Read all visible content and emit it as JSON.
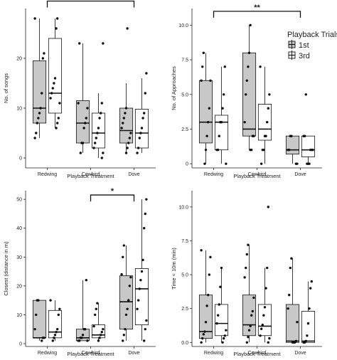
{
  "figure_title": "",
  "colors": {
    "first_fill": "#c8c8c8",
    "third_fill": "#ffffff",
    "stroke": "#111111",
    "point": "#111111"
  },
  "legend": {
    "title": "Playback Trials",
    "items": [
      "1st",
      "3rd"
    ],
    "placement": "right of top-right panel"
  },
  "chart_data": [
    {
      "type": "box",
      "xlabel": "Playback Treatment",
      "ylabel": "No. of songs",
      "categories": [
        "Redwing",
        "Cowbird",
        "Dove"
      ],
      "ylim": [
        -2,
        30
      ],
      "yticks": [
        0,
        10,
        20
      ],
      "grid": false,
      "series": [
        {
          "name": "1st",
          "boxes": [
            {
              "min": 4,
              "q1": 7,
              "median": 10,
              "q3": 19.5,
              "max": 28
            },
            {
              "min": 1,
              "q1": 3,
              "median": 7,
              "q3": 11.5,
              "max": 23
            },
            {
              "min": 1,
              "q1": 3,
              "median": 5.5,
              "q3": 10,
              "max": 15
            }
          ],
          "points": [
            [
              4,
              5,
              7,
              8,
              9,
              10,
              13,
              20,
              21,
              28
            ],
            [
              1,
              3,
              3,
              6,
              7,
              8,
              10,
              11,
              23
            ],
            [
              1,
              2,
              3,
              4,
              5,
              6,
              7,
              8,
              9,
              10,
              26
            ]
          ]
        },
        {
          "name": "3rd",
          "boxes": [
            {
              "min": 6,
              "q1": 9,
              "median": 13,
              "q3": 24,
              "max": 28
            },
            {
              "min": 0,
              "q1": 2,
              "median": 5,
              "q3": 9,
              "max": 13
            },
            {
              "min": 1,
              "q1": 2,
              "median": 5,
              "q3": 9.8,
              "max": 16
            }
          ],
          "points": [
            [
              6,
              7,
              8,
              11,
              12,
              13,
              14,
              15,
              16,
              26,
              28
            ],
            [
              0,
              1,
              2,
              3,
              4,
              5,
              6,
              8,
              9,
              11,
              23
            ],
            [
              1,
              2,
              4,
              5,
              6,
              8,
              9,
              13,
              17
            ]
          ]
        }
      ],
      "significance": [
        {
          "label": "*",
          "from_category": "Redwing",
          "to_category": "Dove",
          "y": 31.5
        }
      ]
    },
    {
      "type": "box",
      "xlabel": "Playback Treatment",
      "ylabel": "No. of Approaches",
      "categories": [
        "Redwing",
        "Cowbird",
        "Dove"
      ],
      "ylim": [
        -0.3,
        11.2
      ],
      "yticks": [
        0.0,
        2.5,
        5.0,
        7.5,
        10.0
      ],
      "ytick_labels": [
        "0",
        "2.5",
        "5.0",
        "7.5",
        "10.0"
      ],
      "grid": false,
      "series": [
        {
          "name": "1st",
          "boxes": [
            {
              "min": 0,
              "q1": 1.5,
              "median": 3,
              "q3": 6,
              "max": 8
            },
            {
              "min": 1,
              "q1": 2,
              "median": 2.5,
              "q3": 8,
              "max": 10
            },
            {
              "min": 0,
              "q1": 0.7,
              "median": 1,
              "q3": 2,
              "max": 2
            }
          ],
          "points": [
            [
              0,
              1,
              2,
              3,
              4,
              6,
              6,
              7,
              8
            ],
            [
              1,
              1,
              2,
              2,
              3,
              5,
              6,
              7,
              8,
              10
            ],
            [
              0,
              0,
              1,
              1,
              2,
              2
            ]
          ]
        },
        {
          "name": "3rd",
          "boxes": [
            {
              "min": 0,
              "q1": 1,
              "median": 3,
              "q3": 3.5,
              "max": 7
            },
            {
              "min": 0,
              "q1": 1.7,
              "median": 2.5,
              "q3": 4.3,
              "max": 7
            },
            {
              "min": 0,
              "q1": 0.5,
              "median": 1,
              "q3": 2,
              "max": 2
            }
          ],
          "points": [
            [
              0,
              1,
              1,
              2,
              3,
              3,
              4,
              5,
              7
            ],
            [
              0,
              1,
              1,
              2,
              2,
              3,
              4,
              5,
              7
            ],
            [
              0,
              0,
              0,
              1,
              1,
              1,
              2,
              2,
              5
            ]
          ]
        }
      ],
      "significance": [
        {
          "label": "**",
          "from_category": "Redwing",
          "to_category": "Dove",
          "y": 11
        }
      ]
    },
    {
      "type": "box",
      "xlabel": "Playback Treatment",
      "ylabel": "Closest (distance in m)",
      "categories": [
        "Redwing",
        "Cowbird",
        "Dove"
      ],
      "ylim": [
        -1,
        53
      ],
      "yticks": [
        0,
        10,
        20,
        30,
        40,
        50
      ],
      "grid": false,
      "series": [
        {
          "name": "1st",
          "boxes": [
            {
              "min": 1,
              "q1": 2,
              "median": 2,
              "q3": 15,
              "max": 15
            },
            {
              "min": 1,
              "q1": 1,
              "median": 2,
              "q3": 5,
              "max": 22
            },
            {
              "min": 1,
              "q1": 5,
              "median": 14.5,
              "q3": 23.5,
              "max": 34
            }
          ],
          "points": [
            [
              1,
              2,
              2,
              5,
              10,
              15,
              15
            ],
            [
              1,
              1,
              1,
              2,
              2,
              3,
              5,
              5,
              22
            ],
            [
              1,
              3,
              5,
              10,
              12,
              15,
              20,
              23,
              24,
              30,
              34
            ]
          ]
        },
        {
          "name": "3rd",
          "boxes": [
            {
              "min": 1,
              "q1": 2,
              "median": 4,
              "q3": 11.5,
              "max": 15
            },
            {
              "min": 1,
              "q1": 2,
              "median": 3,
              "q3": 6.5,
              "max": 14
            },
            {
              "min": 1,
              "q1": 6.5,
              "median": 19,
              "q3": 26,
              "max": 50
            }
          ],
          "points": [
            [
              1,
              2,
              3,
              4,
              5,
              10,
              12,
              15
            ],
            [
              1,
              2,
              3,
              4,
              5,
              6,
              10,
              12,
              14
            ],
            [
              1,
              5,
              8,
              12,
              15,
              19,
              22,
              25,
              29,
              40,
              45,
              50
            ]
          ]
        }
      ],
      "significance": [
        {
          "label": "*",
          "from_category": "Cowbird",
          "to_category": "Dove",
          "y": 51.5
        }
      ]
    },
    {
      "type": "box",
      "xlabel": "Playback Treatment",
      "ylabel": "Time < 10m (min)",
      "categories": [
        "Redwing",
        "Cowbird",
        "Dove"
      ],
      "ylim": [
        -0.3,
        11.2
      ],
      "yticks": [
        0.0,
        2.5,
        5.0,
        7.5,
        10.0
      ],
      "ytick_labels": [
        "0.0",
        "2.5",
        "5.0",
        "7.5",
        "10.0"
      ],
      "grid": false,
      "series": [
        {
          "name": "1st",
          "boxes": [
            {
              "min": 0,
              "q1": 0.3,
              "median": 0.8,
              "q3": 3.5,
              "max": 6.8
            },
            {
              "min": 0,
              "q1": 0.5,
              "median": 1.3,
              "q3": 3.5,
              "max": 7.2
            },
            {
              "min": 0,
              "q1": 0,
              "median": 0.1,
              "q3": 2.8,
              "max": 6.2
            }
          ],
          "points": [
            [
              0,
              0.3,
              0.6,
              0.8,
              1.5,
              2.7,
              3.5,
              5,
              6.3,
              6.8
            ],
            [
              0,
              0.4,
              0.9,
              1.2,
              2,
              2.3,
              3.3,
              4.8,
              5.5,
              6.5,
              7.2
            ],
            [
              0,
              0,
              0,
              0.1,
              1.5,
              2.5,
              3.5,
              5.5,
              6.2
            ]
          ]
        },
        {
          "name": "3rd",
          "boxes": [
            {
              "min": 0,
              "q1": 0.5,
              "median": 1.4,
              "q3": 2.8,
              "max": 5.5
            },
            {
              "min": 0,
              "q1": 0.5,
              "median": 1.2,
              "q3": 2.8,
              "max": 5.5
            },
            {
              "min": 0,
              "q1": 0,
              "median": 0.1,
              "q3": 2.3,
              "max": 4.5
            }
          ],
          "points": [
            [
              0,
              0.3,
              0.5,
              0.9,
              1.4,
              2,
              2.8,
              4.1,
              5.5
            ],
            [
              0,
              0.3,
              0.5,
              1,
              1.3,
              2,
              2.6,
              4,
              5.5,
              10
            ],
            [
              0,
              0,
              0.1,
              0.5,
              1.4,
              2.5,
              4,
              4.5
            ]
          ]
        }
      ],
      "significance": []
    }
  ]
}
